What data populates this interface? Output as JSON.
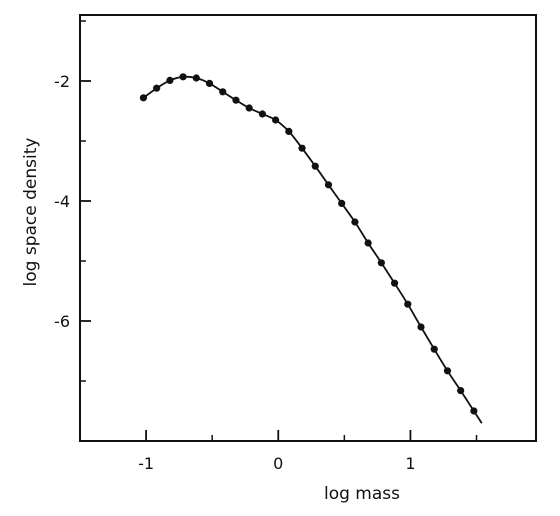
{
  "chart_data": {
    "type": "line",
    "xlabel": "log mass",
    "ylabel": "log space density",
    "xlim": [
      -1.5,
      1.95
    ],
    "ylim": [
      -8.0,
      -0.9
    ],
    "xticks": [
      -1,
      0,
      1
    ],
    "xtick_labels": [
      "-1",
      "0",
      "1"
    ],
    "xticks_minor": [
      -0.5,
      0.5,
      1.5
    ],
    "yticks": [
      -2,
      -4,
      -6
    ],
    "ytick_labels": [
      "-2",
      "-4",
      "-6"
    ],
    "yticks_minor": [
      -1,
      -3,
      -5,
      -7
    ],
    "grid": false,
    "markers": true,
    "series": [
      {
        "x": [
          -1.02,
          -0.92,
          -0.82,
          -0.72,
          -0.62,
          -0.52,
          -0.42,
          -0.32,
          -0.22,
          -0.12,
          -0.02,
          0.08,
          0.18,
          0.28,
          0.38,
          0.48,
          0.58,
          0.68,
          0.78,
          0.88,
          0.98,
          1.08,
          1.18,
          1.28,
          1.38,
          1.48
        ],
        "y": [
          -2.28,
          -2.12,
          -1.99,
          -1.93,
          -1.95,
          -2.04,
          -2.18,
          -2.32,
          -2.45,
          -2.55,
          -2.65,
          -2.84,
          -3.12,
          -3.42,
          -3.73,
          -4.04,
          -4.35,
          -4.7,
          -5.03,
          -5.37,
          -5.72,
          -6.1,
          -6.47,
          -6.83,
          -7.16,
          -7.5
        ]
      }
    ]
  }
}
